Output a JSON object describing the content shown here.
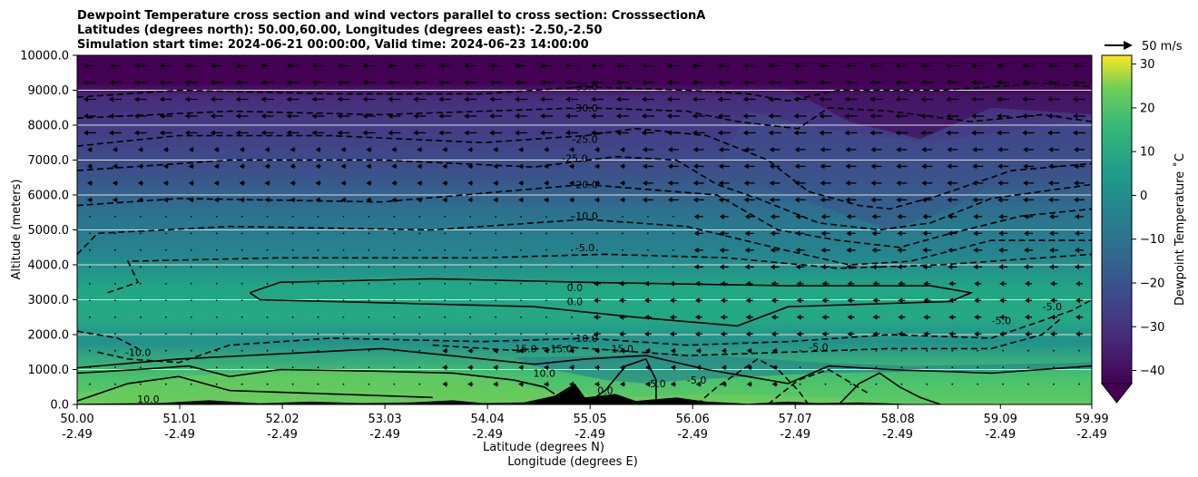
{
  "chart_data": {
    "type": "heatmap",
    "title_lines": [
      "Dewpoint Temperature cross section and wind vectors parallel to cross section: CrosssectionA",
      "Latitudes (degrees north): 50.00,60.00, Longitudes (degrees east): -2.50,-2.50",
      "Simulation start time: 2024-06-21 00:00:00, Valid time: 2024-06-23 14:00:00"
    ],
    "xlabel_lines": [
      "Latitude (degrees N)",
      "Longitude (degrees E)"
    ],
    "ylabel": "Altitude (meters)",
    "x_tick_lat": [
      "50.00",
      "51.01",
      "52.02",
      "53.03",
      "54.04",
      "55.05",
      "56.06",
      "57.07",
      "58.08",
      "59.09",
      "59.99"
    ],
    "x_tick_lon": [
      "-2.49",
      "-2.49",
      "-2.49",
      "-2.49",
      "-2.49",
      "-2.49",
      "-2.49",
      "-2.49",
      "-2.49",
      "-2.49",
      "-2.49"
    ],
    "x_tick_values": [
      50.0,
      51.01,
      52.02,
      53.03,
      54.04,
      55.05,
      56.06,
      57.07,
      58.08,
      59.09,
      59.99
    ],
    "xlim": [
      50.0,
      59.99
    ],
    "y_ticks": [
      "0.0",
      "1000.0",
      "2000.0",
      "3000.0",
      "4000.0",
      "5000.0",
      "6000.0",
      "7000.0",
      "8000.0",
      "9000.0",
      "10000.0"
    ],
    "ylim": [
      0,
      10000
    ],
    "grid": "horizontal",
    "colorbar": {
      "label": "Dewpoint Temperature ˚C",
      "ticks": [
        "−40",
        "−30",
        "−20",
        "−10",
        "0",
        "10",
        "20",
        "30"
      ],
      "tick_values": [
        -40,
        -30,
        -20,
        -10,
        0,
        10,
        20,
        30
      ],
      "range": [
        -43,
        32
      ],
      "extend": "min",
      "colormap": "viridis"
    },
    "wind_key": {
      "label": "50 m/s"
    },
    "contour_labels": [
      {
        "text": "-35.0",
        "x": 55.0,
        "y": 9100
      },
      {
        "text": "-30.0",
        "x": 55.0,
        "y": 8500
      },
      {
        "text": "-25.0",
        "x": 55.0,
        "y": 7600
      },
      {
        "text": "-25.0",
        "x": 54.9,
        "y": 7050
      },
      {
        "text": "-20.0",
        "x": 55.0,
        "y": 6300
      },
      {
        "text": "-10.0",
        "x": 55.0,
        "y": 5400
      },
      {
        "text": "-5.0",
        "x": 55.0,
        "y": 4500
      },
      {
        "text": "0.0",
        "x": 54.9,
        "y": 3350
      },
      {
        "text": "0.0",
        "x": 54.9,
        "y": 2950
      },
      {
        "text": "-10.0",
        "x": 55.0,
        "y": 1900
      },
      {
        "text": "-15.0",
        "x": 54.4,
        "y": 1600
      },
      {
        "text": "-15.0",
        "x": 54.75,
        "y": 1600
      },
      {
        "text": "-15.0",
        "x": 55.35,
        "y": 1600
      },
      {
        "text": "-5.0",
        "x": 57.3,
        "y": 1650
      },
      {
        "text": "-5.0",
        "x": 59.1,
        "y": 2400
      },
      {
        "text": "-5.0",
        "x": 59.6,
        "y": 2800
      },
      {
        "text": "-10.0",
        "x": 50.6,
        "y": 1500
      },
      {
        "text": "10.0",
        "x": 50.7,
        "y": 150
      },
      {
        "text": "10.0",
        "x": 54.6,
        "y": 900
      },
      {
        "text": "0.0",
        "x": 55.2,
        "y": 400
      },
      {
        "text": "-5.0",
        "x": 55.7,
        "y": 600
      },
      {
        "text": "-5.0",
        "x": 56.1,
        "y": 700
      }
    ]
  },
  "colors": {
    "axes_grid": "#dddddd",
    "contour": "#000000",
    "terrain": "#000000"
  }
}
